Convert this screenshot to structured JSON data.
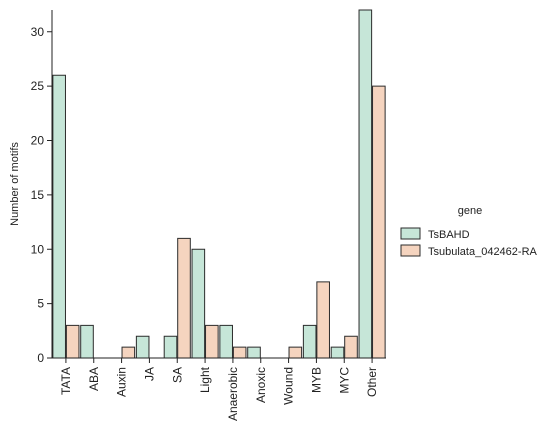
{
  "chart_data": {
    "type": "bar",
    "categories": [
      "TATA",
      "ABA",
      "Auxin",
      "JA",
      "SA",
      "Light",
      "Anaerobic",
      "Anoxic",
      "Wound",
      "MYB",
      "MYC",
      "Other"
    ],
    "series": [
      {
        "name": "TsBAHD",
        "values": [
          26,
          3,
          0,
          2,
          2,
          10,
          3,
          1,
          0,
          3,
          1,
          32
        ],
        "color": "#c6e6d8"
      },
      {
        "name": "Tsubulata_042462-RA",
        "values": [
          3,
          0,
          1,
          0,
          11,
          3,
          1,
          0,
          1,
          7,
          2,
          25
        ],
        "color": "#f5d4bf"
      }
    ],
    "title": "",
    "xlabel": "",
    "ylabel": "Number of motifs",
    "ylim": [
      0,
      32
    ],
    "yticks": [
      0,
      5,
      10,
      15,
      20,
      25,
      30
    ],
    "grid": false,
    "legend": {
      "title": "gene",
      "position": "right"
    }
  }
}
